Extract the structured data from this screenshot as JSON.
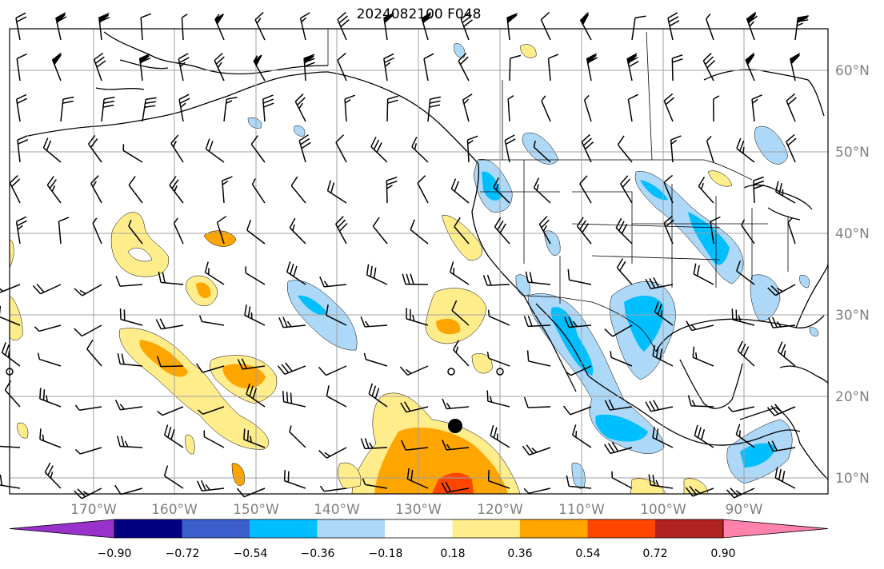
{
  "title": "2024082100 F048",
  "map": {
    "grid": true,
    "longitude_labels": [
      "170°W",
      "160°W",
      "150°W",
      "140°W",
      "130°W",
      "120°W",
      "110°W",
      "100°W",
      "90°W"
    ],
    "latitude_labels": [
      "60°N",
      "50°N",
      "40°N",
      "30°N",
      "20°N",
      "10°N"
    ]
  },
  "colorbar": {
    "ticks": [
      "−0.90",
      "−0.72",
      "−0.54",
      "−0.36",
      "−0.18",
      "0.18",
      "0.36",
      "0.54",
      "0.72",
      "0.90"
    ],
    "colors": [
      "#9932cc",
      "#000080",
      "#3a5fcd",
      "#00bfff",
      "#add8f7",
      "#ffffff",
      "#ffec8b",
      "#ffa500",
      "#ff4500",
      "#b22222",
      "#ff82ab"
    ]
  },
  "marker": {
    "type": "filled-circle",
    "color": "#000000"
  },
  "colors": {
    "positive_light": "#ffec8b",
    "positive_mid": "#ffa500",
    "positive_high": "#ff4500",
    "negative_light": "#add8f7",
    "negative_mid": "#00bfff",
    "grid": "#a0a0a0",
    "axis_labels": "#808080"
  }
}
